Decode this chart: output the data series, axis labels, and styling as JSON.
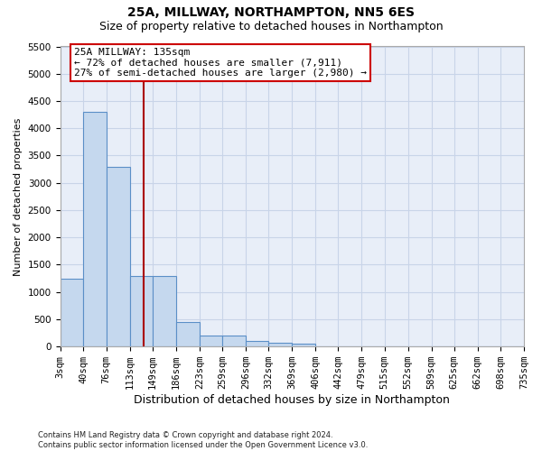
{
  "title": "25A, MILLWAY, NORTHAMPTON, NN5 6ES",
  "subtitle": "Size of property relative to detached houses in Northampton",
  "xlabel": "Distribution of detached houses by size in Northampton",
  "ylabel": "Number of detached properties",
  "bin_edges": [
    3,
    40,
    76,
    113,
    149,
    186,
    223,
    259,
    296,
    332,
    369,
    406,
    442,
    479,
    515,
    552,
    589,
    625,
    662,
    698,
    735
  ],
  "bar_heights": [
    1250,
    4300,
    3300,
    1300,
    1300,
    450,
    200,
    200,
    100,
    75,
    50,
    0,
    0,
    0,
    0,
    0,
    0,
    0,
    0,
    0
  ],
  "bar_color": "#c5d8ee",
  "bar_edge_color": "#5b8fc7",
  "vline_x": 135,
  "vline_color": "#aa0000",
  "annotation_text": "25A MILLWAY: 135sqm\n← 72% of detached houses are smaller (7,911)\n27% of semi-detached houses are larger (2,980) →",
  "annotation_box_facecolor": "#ffffff",
  "annotation_box_edgecolor": "#cc0000",
  "ylim": [
    0,
    5500
  ],
  "yticks": [
    0,
    500,
    1000,
    1500,
    2000,
    2500,
    3000,
    3500,
    4000,
    4500,
    5000,
    5500
  ],
  "grid_color": "#c8d4e8",
  "background_color": "#e8eef8",
  "footer_line1": "Contains HM Land Registry data © Crown copyright and database right 2024.",
  "footer_line2": "Contains public sector information licensed under the Open Government Licence v3.0.",
  "title_fontsize": 10,
  "subtitle_fontsize": 9,
  "ylabel_fontsize": 8,
  "xlabel_fontsize": 9,
  "tick_fontsize": 7.5,
  "annot_fontsize": 8
}
